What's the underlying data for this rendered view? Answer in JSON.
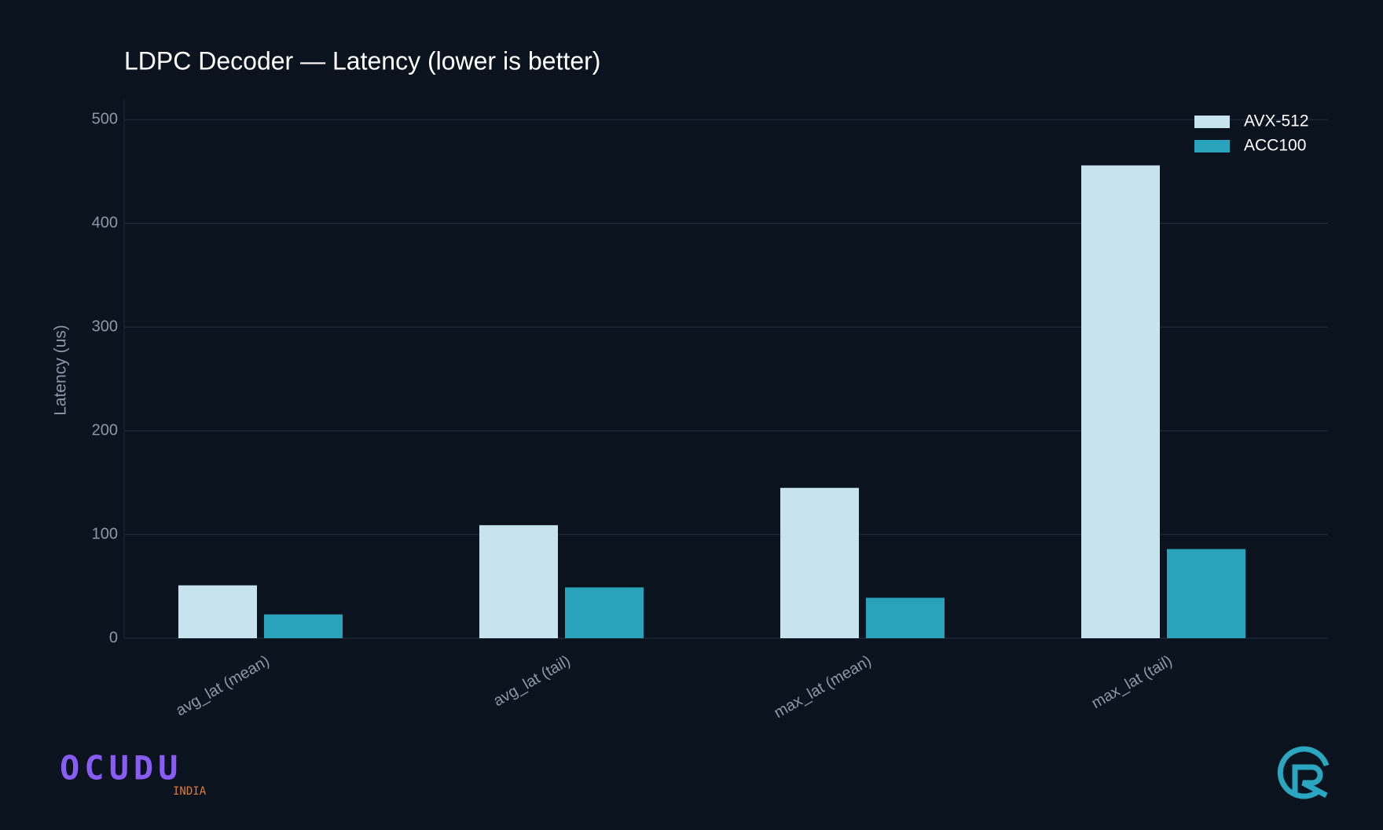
{
  "chart_data": {
    "type": "bar",
    "title": "LDPC Decoder — Latency (lower is better)",
    "y_label": "Latency (us)",
    "categories": [
      "avg_lat (mean)",
      "avg_lat (tail)",
      "max_lat (mean)",
      "max_lat (tail)"
    ],
    "series": [
      {
        "name": "AVX-512",
        "color": "#c6e3ee",
        "values": [
          51,
          109,
          145,
          456
        ]
      },
      {
        "name": "ACC100",
        "color": "#29a3bb",
        "values": [
          23,
          49,
          39,
          86
        ]
      }
    ],
    "ylim": [
      0,
      520
    ],
    "yticks": [
      0,
      100,
      200,
      300,
      400,
      500
    ],
    "grid": true,
    "legend": "top-right"
  },
  "branding": {
    "logo_text": "OCUDU",
    "logo_subtext": "INDIA"
  }
}
